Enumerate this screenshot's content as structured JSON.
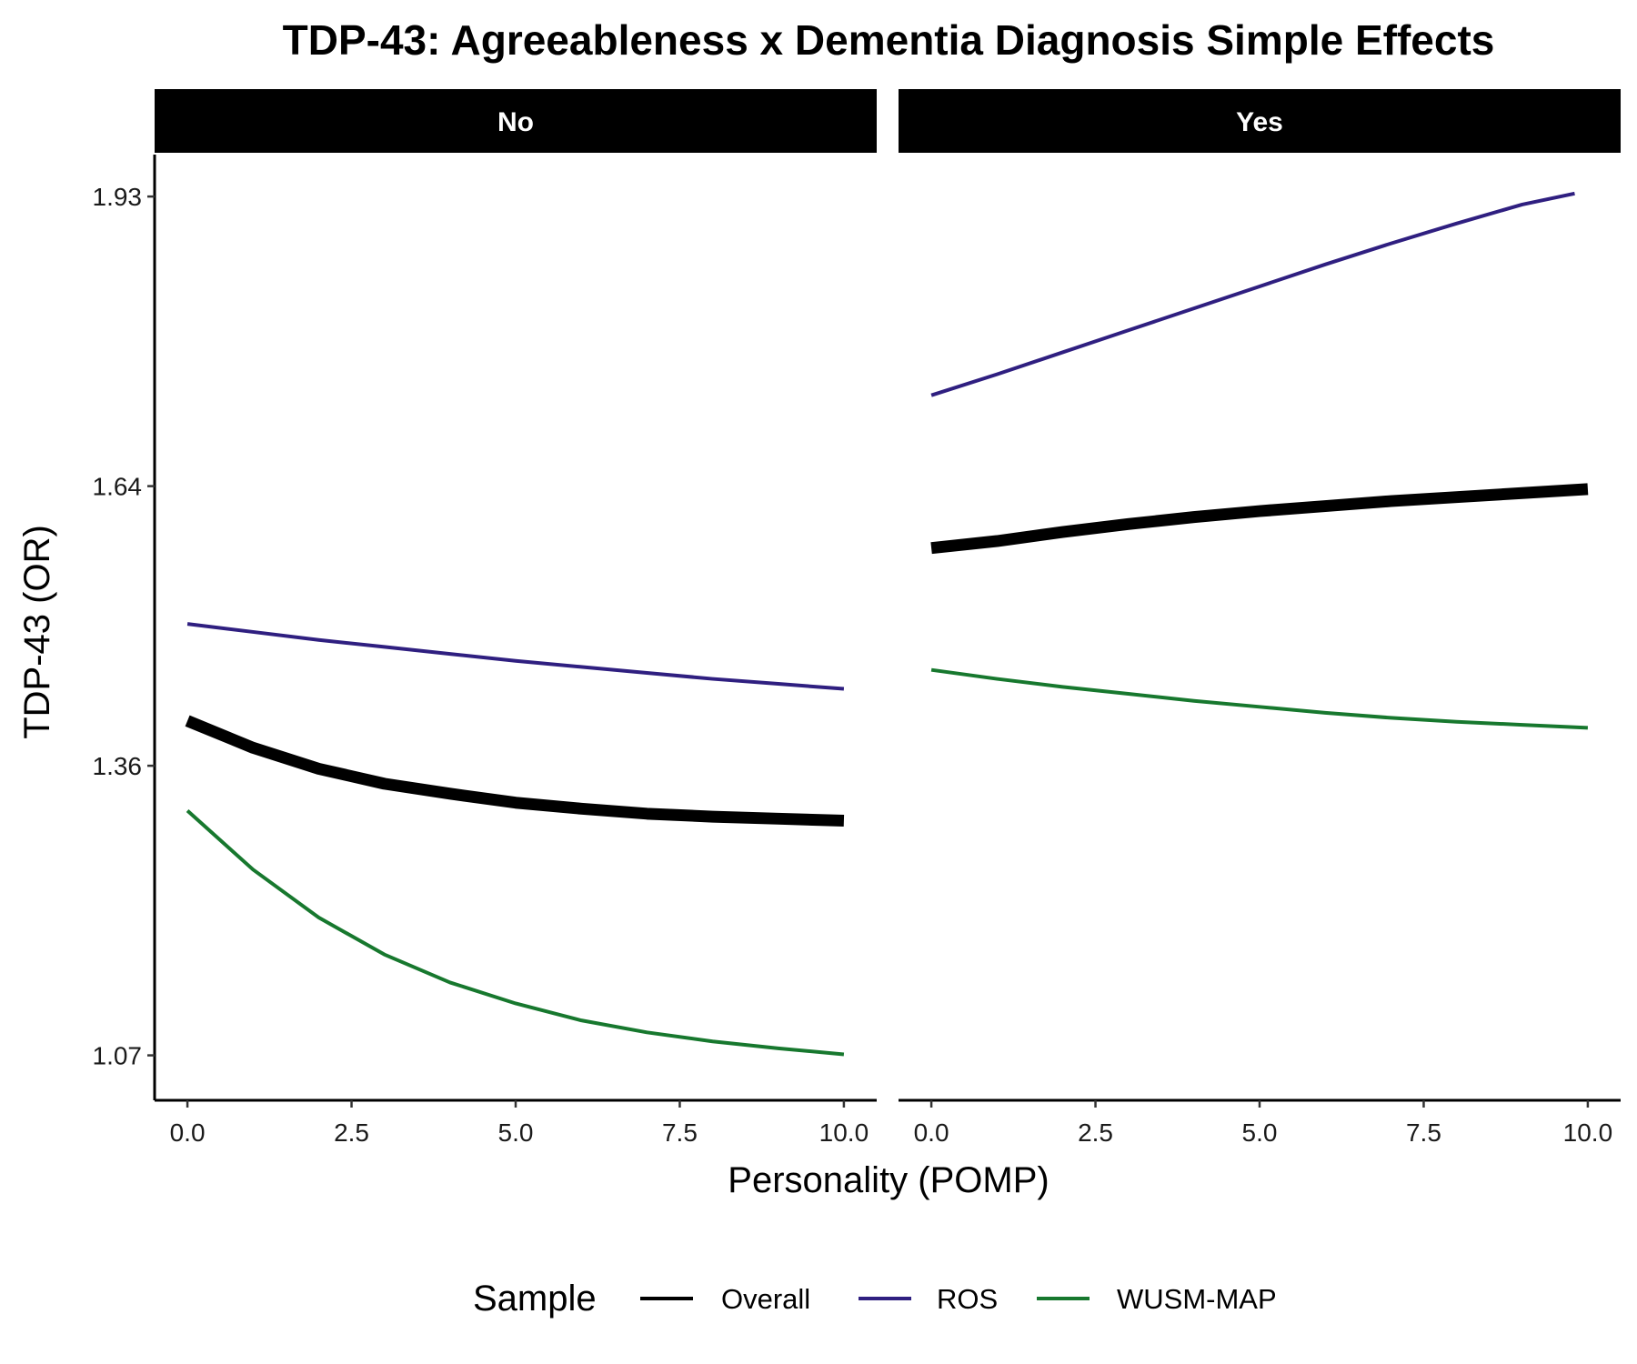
{
  "chart_data": {
    "type": "line",
    "title": "TDP-43: Agreeableness x Dementia Diagnosis Simple Effects",
    "xlabel": "Personality (POMP)",
    "ylabel": "TDP-43 (OR)",
    "xlim": [
      -0.5,
      10.5
    ],
    "ylim": [
      1.025,
      1.972
    ],
    "x_ticks": [
      "0.0",
      "2.5",
      "5.0",
      "7.5",
      "10.0"
    ],
    "y_ticks": [
      "1.07",
      "1.36",
      "1.64",
      "1.93"
    ],
    "grid": false,
    "legend": {
      "title": "Sample",
      "position": "bottom",
      "entries": [
        "Overall",
        "ROS",
        "WUSM-MAP"
      ]
    },
    "series_styles": [
      {
        "name": "Overall",
        "color": "#000000",
        "width": 13
      },
      {
        "name": "ROS",
        "color": "#2f1f80",
        "width": 4
      },
      {
        "name": "WUSM-MAP",
        "color": "#17782e",
        "width": 4
      }
    ],
    "panels": [
      {
        "label": "No",
        "series": [
          {
            "name": "Overall",
            "x": [
              0,
              1,
              2,
              3,
              4,
              5,
              6,
              7,
              8,
              9,
              10
            ],
            "values": [
              1.405,
              1.378,
              1.357,
              1.342,
              1.332,
              1.323,
              1.317,
              1.312,
              1.309,
              1.307,
              1.305
            ]
          },
          {
            "name": "ROS",
            "x": [
              0,
              1,
              2,
              3,
              4,
              5,
              6,
              7,
              8,
              9,
              10
            ],
            "values": [
              1.502,
              1.494,
              1.486,
              1.479,
              1.472,
              1.465,
              1.459,
              1.453,
              1.447,
              1.442,
              1.437
            ]
          },
          {
            "name": "WUSM-MAP",
            "x": [
              0,
              1,
              2,
              3,
              4,
              5,
              6,
              7,
              8,
              9,
              10
            ],
            "values": [
              1.315,
              1.256,
              1.208,
              1.171,
              1.143,
              1.122,
              1.105,
              1.093,
              1.084,
              1.077,
              1.071
            ]
          }
        ]
      },
      {
        "label": "Yes",
        "series": [
          {
            "name": "Overall",
            "x": [
              0,
              1,
              2,
              3,
              4,
              5,
              6,
              7,
              8,
              9,
              10
            ],
            "values": [
              1.578,
              1.585,
              1.594,
              1.602,
              1.609,
              1.615,
              1.62,
              1.625,
              1.629,
              1.633,
              1.637
            ]
          },
          {
            "name": "ROS",
            "x": [
              0,
              1,
              2,
              3,
              4,
              5,
              6,
              7,
              8,
              9,
              9.8
            ],
            "values": [
              1.731,
              1.752,
              1.774,
              1.796,
              1.818,
              1.84,
              1.862,
              1.883,
              1.903,
              1.922,
              1.933
            ]
          },
          {
            "name": "WUSM-MAP",
            "x": [
              0,
              1,
              2,
              3,
              4,
              5,
              6,
              7,
              8,
              9,
              10
            ],
            "values": [
              1.456,
              1.447,
              1.439,
              1.432,
              1.425,
              1.419,
              1.413,
              1.408,
              1.404,
              1.401,
              1.398
            ]
          }
        ]
      }
    ]
  }
}
